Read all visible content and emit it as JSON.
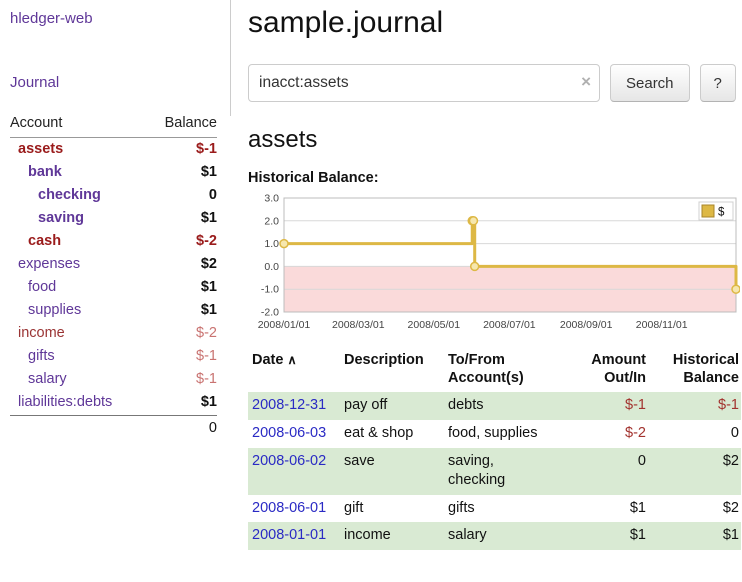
{
  "colors": {
    "purple": "#5f3798",
    "link_blue": "#2a2ac4",
    "neg_dark": "#9a1b1b",
    "neg_mid": "#9a3434",
    "neg_light": "#c97371",
    "neg_register": "#a2322e",
    "row_green": "#d9ead3"
  },
  "sidebar": {
    "app_title": "hledger-web",
    "journal_link": "Journal",
    "header": {
      "account": "Account",
      "balance": "Balance"
    },
    "accounts": [
      {
        "name": "assets",
        "balance": "$-1",
        "indent": 0,
        "bold": true,
        "neg_name": true
      },
      {
        "name": "bank",
        "balance": "$1",
        "indent": 1,
        "bold": true,
        "neg_name": false
      },
      {
        "name": "checking",
        "balance": "0",
        "indent": 2,
        "bold": true,
        "neg_name": false
      },
      {
        "name": "saving",
        "balance": "$1",
        "indent": 2,
        "bold": true,
        "neg_name": false
      },
      {
        "name": "cash",
        "balance": "$-2",
        "indent": 1,
        "bold": true,
        "neg_name": true
      },
      {
        "name": "expenses",
        "balance": "$2",
        "indent": 0,
        "bold": false,
        "neg_name": false
      },
      {
        "name": "food",
        "balance": "$1",
        "indent": 1,
        "bold": false,
        "neg_name": false
      },
      {
        "name": "supplies",
        "balance": "$1",
        "indent": 1,
        "bold": false,
        "neg_name": false
      },
      {
        "name": "income",
        "balance": "$-2",
        "indent": 0,
        "bold": false,
        "neg_name": true
      },
      {
        "name": "gifts",
        "balance": "$-1",
        "indent": 1,
        "bold": false,
        "neg_name": false
      },
      {
        "name": "salary",
        "balance": "$-1",
        "indent": 1,
        "bold": false,
        "neg_name": false
      },
      {
        "name": "liabilities:debts",
        "balance": "$1",
        "indent": 0,
        "bold": false,
        "neg_name": false
      }
    ],
    "total": "0"
  },
  "main": {
    "title": "sample.journal",
    "search": {
      "value": "inacct:assets",
      "clear_icon": "×",
      "search_button": "Search",
      "help_button": "?"
    },
    "account_heading": "assets",
    "register": {
      "headers": {
        "date": "Date",
        "sort_indicator": "∧",
        "description": "Description",
        "accounts": "To/From\nAccount(s)",
        "amount": "Amount\nOut/In",
        "balance": "Historical\nBalance"
      },
      "rows": [
        {
          "date": "2008-12-31",
          "description": "pay off",
          "accounts": "debts",
          "amount": "$-1",
          "balance": "$-1"
        },
        {
          "date": "2008-06-03",
          "description": "eat & shop",
          "accounts": "food, supplies",
          "amount": "$-2",
          "balance": "0"
        },
        {
          "date": "2008-06-02",
          "description": "save",
          "accounts": "saving, checking",
          "amount": "0",
          "balance": "$2"
        },
        {
          "date": "2008-06-01",
          "description": "gift",
          "accounts": "gifts",
          "amount": "$1",
          "balance": "$2"
        },
        {
          "date": "2008-01-01",
          "description": "income",
          "accounts": "salary",
          "amount": "$1",
          "balance": "$1"
        }
      ]
    }
  },
  "chart_data": {
    "type": "line",
    "title": "Historical Balance:",
    "x_start": "2008/01/01",
    "x_end": "2008/12/31",
    "ylim": [
      -2.0,
      3.0
    ],
    "yticks": [
      3.0,
      2.0,
      1.0,
      0.0,
      -1.0,
      -2.0
    ],
    "xticks": [
      "2008/01/01",
      "2008/03/01",
      "2008/05/01",
      "2008/07/01",
      "2008/09/01",
      "2008/11/01"
    ],
    "grid": "horizontal",
    "legend_position": "top-right",
    "negative_region_color": "#fadada",
    "marker_fill": "#f6e7ae",
    "series": [
      {
        "name": "$",
        "color": "#ddb845",
        "step": true,
        "points": [
          {
            "date": "2008/01/01",
            "value": 1
          },
          {
            "date": "2008/06/01",
            "value": 2
          },
          {
            "date": "2008/06/02",
            "value": 2
          },
          {
            "date": "2008/06/03",
            "value": 0
          },
          {
            "date": "2008/12/31",
            "value": -1
          }
        ]
      }
    ]
  }
}
